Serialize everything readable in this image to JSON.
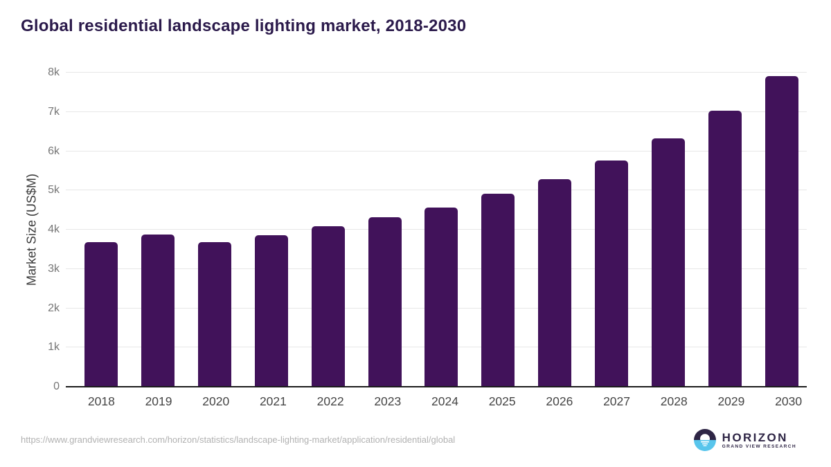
{
  "title": "Global residential landscape lighting market, 2018-2030",
  "chart_data": {
    "type": "bar",
    "title": "Global residential landscape lighting market, 2018-2030",
    "categories": [
      "2018",
      "2019",
      "2020",
      "2021",
      "2022",
      "2023",
      "2024",
      "2025",
      "2026",
      "2027",
      "2028",
      "2029",
      "2030"
    ],
    "values": [
      3680,
      3885,
      3675,
      3860,
      4090,
      4310,
      4570,
      4920,
      5290,
      5760,
      6320,
      7030,
      7920
    ],
    "xlabel": "",
    "ylabel": "Market Size (US$M)",
    "ylim": [
      0,
      8000
    ],
    "ytick_step": 1000,
    "ytick_labels": [
      "0",
      "1k",
      "2k",
      "3k",
      "4k",
      "5k",
      "6k",
      "7k",
      "8k"
    ],
    "grid": true,
    "legend": "none",
    "bar_color": "#41125a"
  },
  "colors": {
    "bar": "#41125a",
    "title_text": "#2b1a4b",
    "axis_line": "#1b1b1b",
    "gridline": "#e7e7e7",
    "y_tick_text": "#757575",
    "x_tick_text": "#454545",
    "url_text": "#b1b1b1",
    "logo_navy": "#2e2545",
    "logo_blue": "#58c5ec"
  },
  "footer": {
    "source_url": "https://www.grandviewresearch.com/horizon/statistics/landscape-lighting-market/application/residential/global",
    "logo_name": "HORIZON",
    "logo_subtitle": "GRAND VIEW RESEARCH"
  }
}
